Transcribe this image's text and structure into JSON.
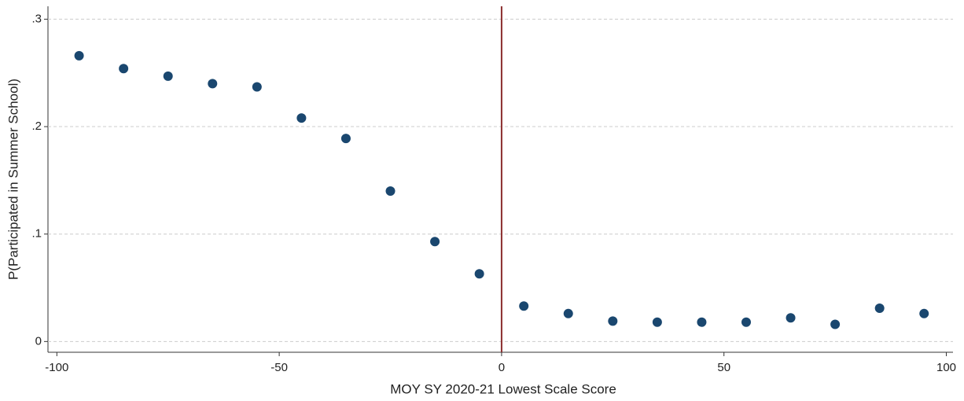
{
  "chart_data": {
    "type": "scatter",
    "xlabel": "MOY SY 2020-21 Lowest Scale Score",
    "ylabel": "P(Participated in Summer School)",
    "x": [
      -95,
      -85,
      -75,
      -65,
      -55,
      -45,
      -35,
      -25,
      -15,
      -5,
      5,
      15,
      25,
      35,
      45,
      55,
      65,
      75,
      85,
      95
    ],
    "values": [
      0.266,
      0.254,
      0.247,
      0.24,
      0.237,
      0.208,
      0.189,
      0.14,
      0.093,
      0.063,
      0.033,
      0.026,
      0.019,
      0.018,
      0.018,
      0.018,
      0.022,
      0.016,
      0.031,
      0.026
    ],
    "color": "#1a476f",
    "vline_x": 0,
    "vline_color": "#8b2e2e",
    "xlim": [
      -102,
      101.5
    ],
    "ylim": [
      -0.01,
      0.312
    ],
    "xticks": [
      -100,
      -50,
      0,
      50,
      100
    ],
    "yticks": [
      0,
      {
        "value": 0.1,
        "label": ".1"
      },
      {
        "value": 0.2,
        "label": ".2"
      },
      {
        "value": 0.3,
        "label": ".3"
      }
    ],
    "grid": true
  }
}
